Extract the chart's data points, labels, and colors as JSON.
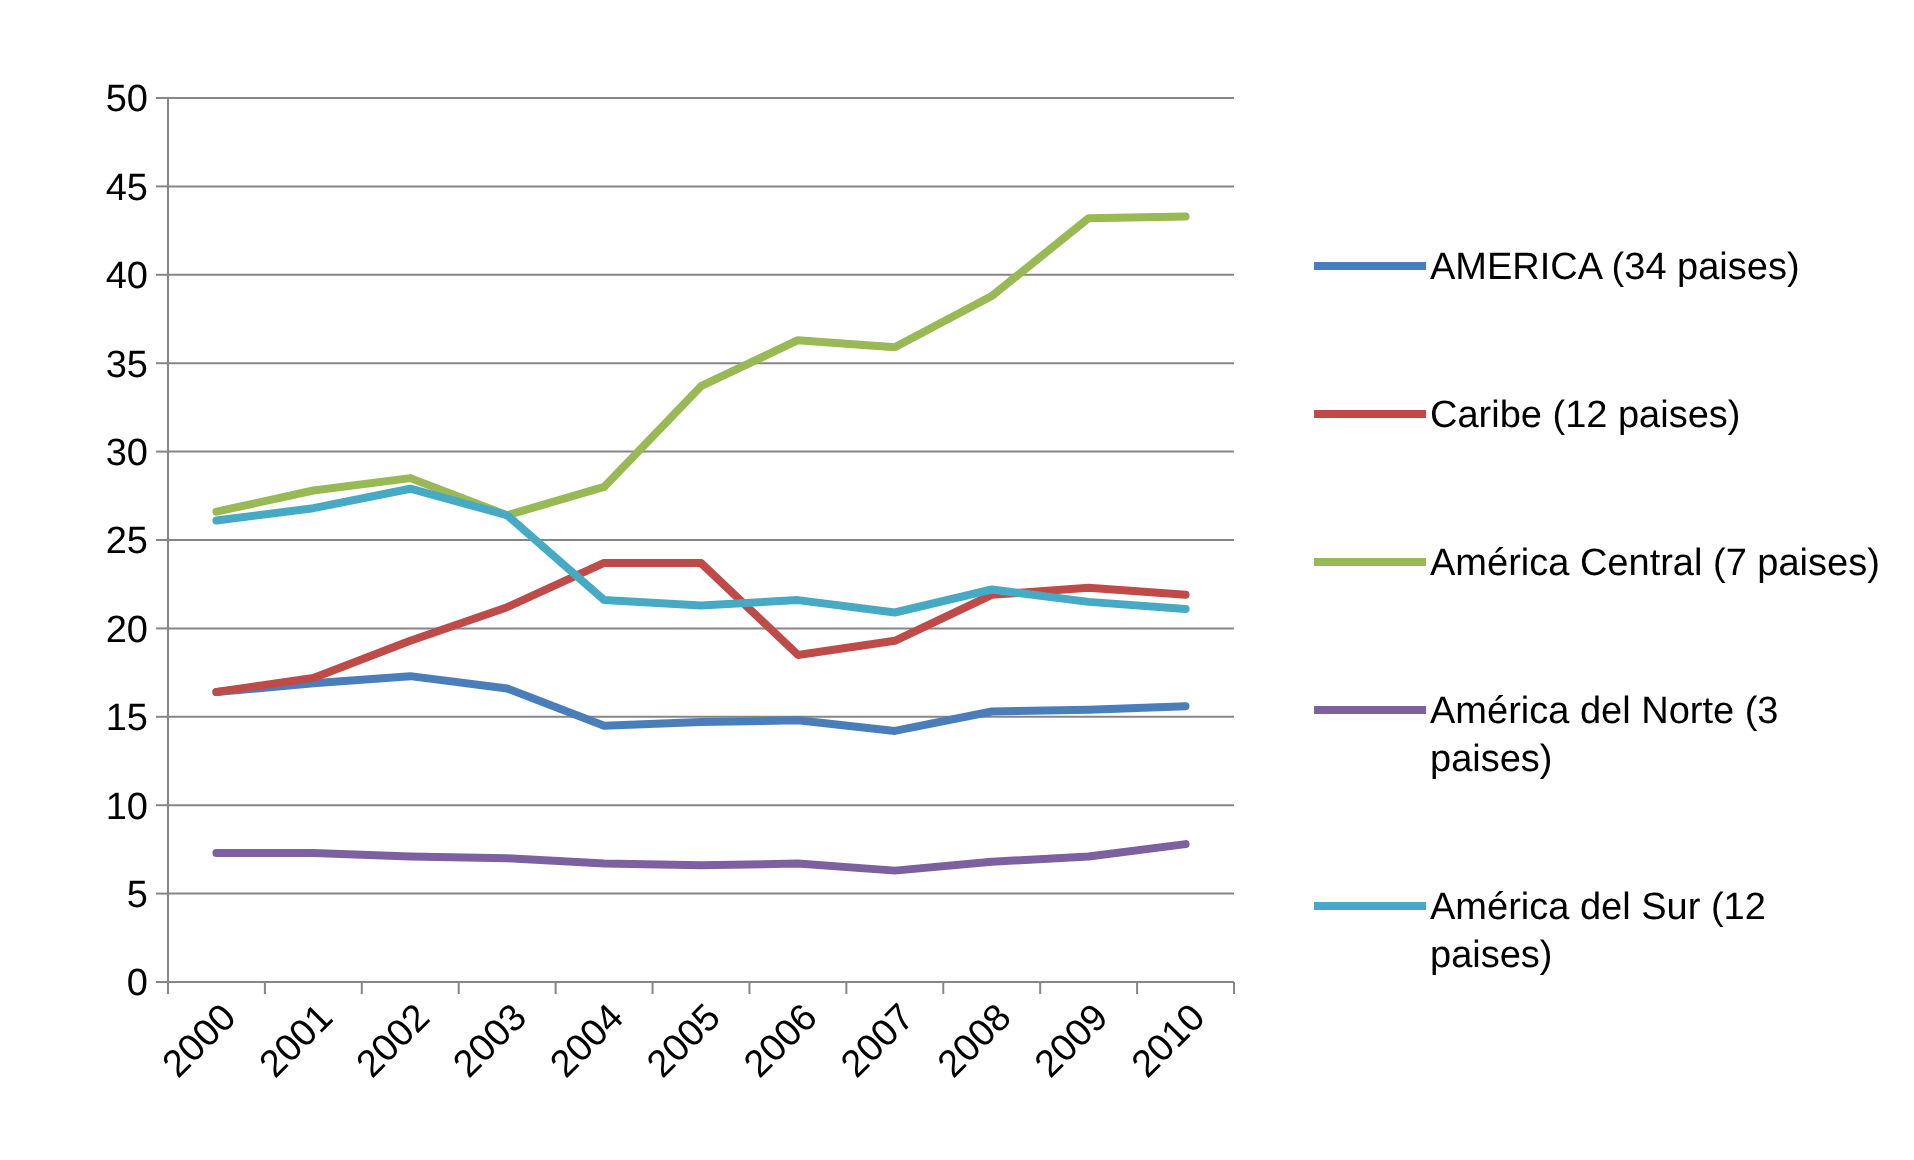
{
  "chart_data": {
    "type": "line",
    "categories": [
      "2000",
      "2001",
      "2002",
      "2003",
      "2004",
      "2005",
      "2006",
      "2007",
      "2008",
      "2009",
      "2010"
    ],
    "series": [
      {
        "name": "AMERICA (34 paises)",
        "color": "#4a7ebb",
        "values": [
          16.4,
          16.9,
          17.3,
          16.6,
          14.5,
          14.7,
          14.8,
          14.2,
          15.3,
          15.4,
          15.6
        ]
      },
      {
        "name": "Caribe (12 paises)",
        "color": "#be4b48",
        "values": [
          16.4,
          17.2,
          19.3,
          21.2,
          23.7,
          23.7,
          18.5,
          19.3,
          21.9,
          22.3,
          21.9
        ]
      },
      {
        "name": "América Central (7 paises)",
        "color": "#98b954",
        "values": [
          26.6,
          27.8,
          28.5,
          26.4,
          28.0,
          33.7,
          36.3,
          35.9,
          38.8,
          43.2,
          43.3
        ]
      },
      {
        "name": "América del Norte (3 paises)",
        "color": "#7d60a0",
        "values": [
          7.3,
          7.3,
          7.1,
          7.0,
          6.7,
          6.6,
          6.7,
          6.3,
          6.8,
          7.1,
          7.8
        ]
      },
      {
        "name": "América del Sur (12 paises)",
        "color": "#46aac5",
        "values": [
          26.1,
          26.8,
          27.9,
          26.4,
          21.6,
          21.3,
          21.6,
          20.9,
          22.2,
          21.5,
          21.1
        ]
      }
    ],
    "ylim": [
      0,
      50
    ],
    "yticks": [
      0,
      5,
      10,
      15,
      20,
      25,
      30,
      35,
      40,
      45,
      50
    ],
    "grid": "y",
    "legend": "right",
    "marker": "none",
    "line_style": "solid"
  }
}
